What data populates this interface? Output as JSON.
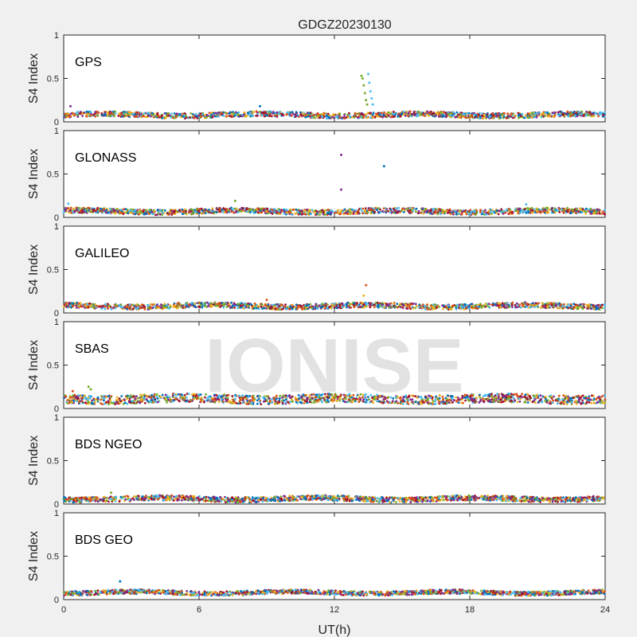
{
  "figure": {
    "title": "GDGZ20230130",
    "watermark": "IONISE"
  },
  "chart_data": {
    "type": "scatter",
    "title": "GDGZ20230130",
    "xlabel": "UT(h)",
    "ylabel": "S4 Index",
    "xlim": [
      0,
      24
    ],
    "ylim": [
      0,
      1
    ],
    "xticks": [
      "0",
      "6",
      "12",
      "18",
      "24"
    ],
    "yticks": [
      "0",
      "0.5",
      "1"
    ],
    "grid": false,
    "series_colors": [
      "#0072BD",
      "#D95319",
      "#EDB120",
      "#7E2F8E",
      "#77AC30",
      "#4DBEEE",
      "#A2142F"
    ],
    "panels": [
      {
        "label": "GPS",
        "baseline": 0.08,
        "spread": 0.03,
        "outliers": [
          {
            "x": 13.2,
            "y": 0.53,
            "color": "#77AC30"
          },
          {
            "x": 13.25,
            "y": 0.5,
            "color": "#77AC30"
          },
          {
            "x": 13.3,
            "y": 0.42,
            "color": "#77AC30"
          },
          {
            "x": 13.35,
            "y": 0.33,
            "color": "#77AC30"
          },
          {
            "x": 13.4,
            "y": 0.25,
            "color": "#77AC30"
          },
          {
            "x": 13.45,
            "y": 0.2,
            "color": "#77AC30"
          },
          {
            "x": 13.5,
            "y": 0.55,
            "color": "#4DBEEE"
          },
          {
            "x": 13.55,
            "y": 0.45,
            "color": "#4DBEEE"
          },
          {
            "x": 13.6,
            "y": 0.35,
            "color": "#4DBEEE"
          },
          {
            "x": 13.65,
            "y": 0.27,
            "color": "#4DBEEE"
          },
          {
            "x": 13.7,
            "y": 0.2,
            "color": "#4DBEEE"
          },
          {
            "x": 0.3,
            "y": 0.18,
            "color": "#7E2F8E"
          },
          {
            "x": 8.7,
            "y": 0.18,
            "color": "#0072BD"
          }
        ]
      },
      {
        "label": "GLONASS",
        "baseline": 0.07,
        "spread": 0.03,
        "outliers": [
          {
            "x": 12.3,
            "y": 0.72,
            "color": "#7E2F8E"
          },
          {
            "x": 12.3,
            "y": 0.32,
            "color": "#7E2F8E"
          },
          {
            "x": 14.2,
            "y": 0.59,
            "color": "#0072BD"
          },
          {
            "x": 7.6,
            "y": 0.19,
            "color": "#77AC30"
          },
          {
            "x": 20.5,
            "y": 0.15,
            "color": "#4DBEEE"
          },
          {
            "x": 0.2,
            "y": 0.16,
            "color": "#4DBEEE"
          }
        ]
      },
      {
        "label": "GALILEO",
        "baseline": 0.08,
        "spread": 0.03,
        "outliers": [
          {
            "x": 13.4,
            "y": 0.32,
            "color": "#D95319"
          },
          {
            "x": 13.3,
            "y": 0.2,
            "color": "#EDB120"
          },
          {
            "x": 9.0,
            "y": 0.15,
            "color": "#D95319"
          }
        ]
      },
      {
        "label": "SBAS",
        "baseline": 0.11,
        "spread": 0.05,
        "outliers": [
          {
            "x": 1.1,
            "y": 0.25,
            "color": "#77AC30"
          },
          {
            "x": 1.2,
            "y": 0.22,
            "color": "#77AC30"
          },
          {
            "x": 0.4,
            "y": 0.2,
            "color": "#D95319"
          }
        ]
      },
      {
        "label": "BDS NGEO",
        "baseline": 0.06,
        "spread": 0.03,
        "outliers": [
          {
            "x": 2.1,
            "y": 0.13,
            "color": "#77AC30"
          }
        ]
      },
      {
        "label": "BDS GEO",
        "baseline": 0.08,
        "spread": 0.025,
        "outliers": [
          {
            "x": 2.5,
            "y": 0.21,
            "color": "#0072BD"
          }
        ]
      }
    ]
  }
}
